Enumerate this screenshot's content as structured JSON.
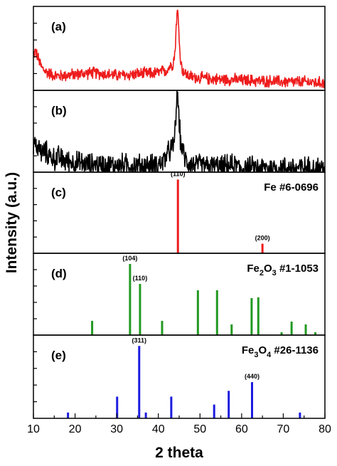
{
  "chart_data": {
    "type": "line",
    "xlabel": "2 theta",
    "ylabel": "Intensity (a.u.)",
    "xlim": [
      10,
      80
    ],
    "x_ticks": [
      10,
      20,
      30,
      40,
      50,
      60,
      70,
      80
    ],
    "panels": [
      {
        "label": "(a)",
        "kind": "pattern",
        "color": "#ee1c1c",
        "noise": 0.06,
        "ylim": [
          0,
          1
        ],
        "series": {
          "x": [
            10,
            10.5,
            11,
            11.5,
            12,
            13,
            14,
            15,
            16,
            18,
            20,
            22,
            24,
            26,
            28,
            30,
            32,
            34,
            36,
            38,
            40,
            42,
            43,
            43.5,
            44,
            44.3,
            44.6,
            44.9,
            45.2,
            45.6,
            46,
            47,
            48,
            50,
            52,
            55,
            58,
            60,
            62,
            64,
            66,
            68,
            70,
            72,
            74,
            76,
            78,
            80
          ],
          "y": [
            0.42,
            0.47,
            0.4,
            0.33,
            0.27,
            0.22,
            0.2,
            0.18,
            0.17,
            0.18,
            0.19,
            0.2,
            0.21,
            0.2,
            0.19,
            0.18,
            0.18,
            0.19,
            0.2,
            0.2,
            0.21,
            0.24,
            0.3,
            0.32,
            0.45,
            0.78,
            0.97,
            0.74,
            0.42,
            0.28,
            0.22,
            0.18,
            0.16,
            0.15,
            0.14,
            0.13,
            0.13,
            0.12,
            0.12,
            0.11,
            0.11,
            0.11,
            0.1,
            0.1,
            0.1,
            0.1,
            0.09,
            0.09
          ]
        }
      },
      {
        "label": "(b)",
        "kind": "pattern",
        "color": "#000000",
        "noise": 0.12,
        "ylim": [
          0,
          1
        ],
        "series": {
          "x": [
            10,
            11,
            12,
            13,
            14,
            15,
            16,
            18,
            20,
            22,
            24,
            26,
            28,
            30,
            32,
            34,
            36,
            38,
            40,
            41,
            42,
            43,
            43.6,
            44,
            44.3,
            44.6,
            44.9,
            45.3,
            45.8,
            46.5,
            48,
            50,
            52,
            55,
            58,
            60,
            62,
            64,
            66,
            68,
            70,
            72,
            74,
            76,
            78,
            80
          ],
          "y": [
            0.35,
            0.3,
            0.24,
            0.24,
            0.2,
            0.16,
            0.18,
            0.13,
            0.12,
            0.1,
            0.09,
            0.09,
            0.08,
            0.08,
            0.09,
            0.08,
            0.08,
            0.08,
            0.1,
            0.12,
            0.2,
            0.28,
            0.3,
            0.5,
            0.8,
            0.95,
            0.7,
            0.4,
            0.26,
            0.15,
            0.1,
            0.08,
            0.07,
            0.06,
            0.08,
            0.05,
            0.05,
            0.05,
            0.05,
            0.05,
            0.05,
            0.05,
            0.05,
            0.05,
            0.05,
            0.05
          ]
        }
      },
      {
        "label": "(c)",
        "kind": "reference",
        "ref_parts": [
          {
            "text": "Fe #6-0696",
            "sub": false
          }
        ],
        "color": "#ee1c1c",
        "ylim": [
          0,
          110
        ],
        "peaks": [
          {
            "x": 44.7,
            "y": 100,
            "hkl": "(110)"
          },
          {
            "x": 65.0,
            "y": 13,
            "hkl": "(200)"
          }
        ]
      },
      {
        "label": "(d)",
        "kind": "reference",
        "ref_parts": [
          {
            "text": "Fe",
            "sub": false
          },
          {
            "text": "2",
            "sub": true
          },
          {
            "text": "O",
            "sub": false
          },
          {
            "text": "3",
            "sub": true
          },
          {
            "text": " #1-1053",
            "sub": false
          }
        ],
        "color": "#229922",
        "ylim": [
          0,
          115
        ],
        "peaks": [
          {
            "x": 24.1,
            "y": 20
          },
          {
            "x": 33.2,
            "y": 100,
            "hkl": "(104)"
          },
          {
            "x": 35.6,
            "y": 72,
            "hkl": "(110)"
          },
          {
            "x": 40.9,
            "y": 20
          },
          {
            "x": 49.5,
            "y": 63
          },
          {
            "x": 54.1,
            "y": 63
          },
          {
            "x": 57.6,
            "y": 15
          },
          {
            "x": 62.4,
            "y": 52
          },
          {
            "x": 64.0,
            "y": 53
          },
          {
            "x": 69.6,
            "y": 4
          },
          {
            "x": 72.0,
            "y": 19
          },
          {
            "x": 75.4,
            "y": 15
          },
          {
            "x": 77.7,
            "y": 4
          }
        ]
      },
      {
        "label": "(e)",
        "kind": "reference",
        "ref_parts": [
          {
            "text": "Fe",
            "sub": false
          },
          {
            "text": "3",
            "sub": true
          },
          {
            "text": "O",
            "sub": false
          },
          {
            "text": "4",
            "sub": true
          },
          {
            "text": " #26-1136",
            "sub": false
          }
        ],
        "color": "#1c1ce0",
        "ylim": [
          0,
          115
        ],
        "peaks": [
          {
            "x": 18.3,
            "y": 8
          },
          {
            "x": 30.1,
            "y": 30
          },
          {
            "x": 35.4,
            "y": 100,
            "hkl": "(311)"
          },
          {
            "x": 37.0,
            "y": 8
          },
          {
            "x": 43.1,
            "y": 30
          },
          {
            "x": 53.4,
            "y": 19
          },
          {
            "x": 56.9,
            "y": 38
          },
          {
            "x": 62.5,
            "y": 50,
            "hkl": "(440)"
          },
          {
            "x": 74.0,
            "y": 8
          }
        ]
      }
    ]
  }
}
